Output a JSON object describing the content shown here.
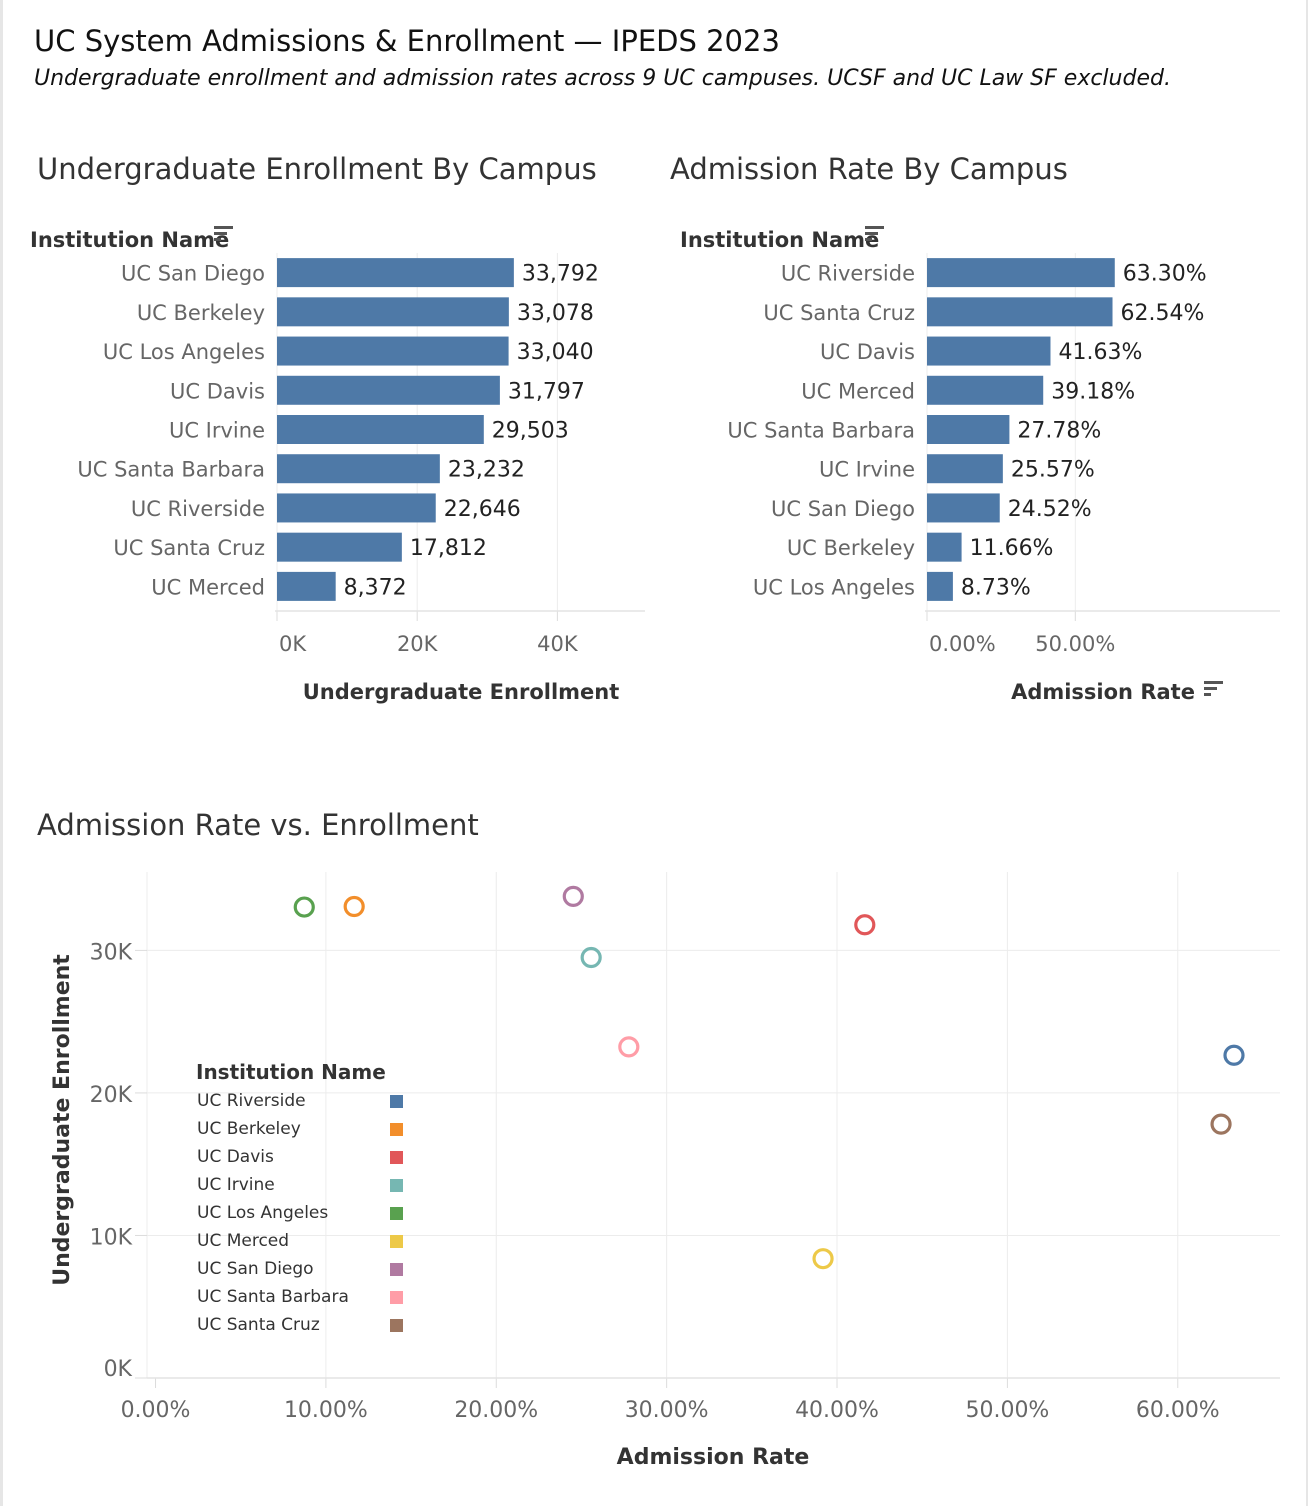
{
  "dashboard": {
    "title": "UC System Admissions & Enrollment — IPEDS 2023",
    "subtitle": "Undergraduate enrollment and admission rates across 9 UC campuses. UCSF and UC Law SF excluded."
  },
  "colors": {
    "bar": "#4e79a7",
    "grid": "#ececec",
    "UC Riverside": "#4e79a7",
    "UC Berkeley": "#f28e2b",
    "UC Davis": "#e15759",
    "UC Irvine": "#76b7b2",
    "UC Los Angeles": "#59a14f",
    "UC Merced": "#edc948",
    "UC San Diego": "#b07aa1",
    "UC Santa Barbara": "#ff9da7",
    "UC Santa Cruz": "#9c755f"
  },
  "chart_data": [
    {
      "type": "bar",
      "orientation": "horizontal",
      "title": "Undergraduate Enrollment By Campus",
      "dimension_label": "Institution Name",
      "xlabel": "Undergraduate Enrollment",
      "xlim": [
        0,
        52500
      ],
      "xticks": [
        0,
        20000,
        40000
      ],
      "xtick_labels": [
        "0K",
        "20K",
        "40K"
      ],
      "categories": [
        "UC San Diego",
        "UC Berkeley",
        "UC Los Angeles",
        "UC Davis",
        "UC Irvine",
        "UC Santa Barbara",
        "UC Riverside",
        "UC Santa Cruz",
        "UC Merced"
      ],
      "values": [
        33792,
        33078,
        33040,
        31797,
        29503,
        23232,
        22646,
        17812,
        8372
      ],
      "labels": [
        "33,792",
        "33,078",
        "33,040",
        "31,797",
        "29,503",
        "23,232",
        "22,646",
        "17,812",
        "8,372"
      ],
      "grid": true
    },
    {
      "type": "bar",
      "orientation": "horizontal",
      "title": "Admission Rate By Campus",
      "dimension_label": "Institution Name",
      "xlabel": "Admission Rate",
      "xlim": [
        0,
        119
      ],
      "xticks": [
        0,
        50
      ],
      "xtick_labels": [
        "0.00%",
        "50.00%"
      ],
      "categories": [
        "UC Riverside",
        "UC Santa Cruz",
        "UC Davis",
        "UC Merced",
        "UC Santa Barbara",
        "UC Irvine",
        "UC San Diego",
        "UC Berkeley",
        "UC Los Angeles"
      ],
      "values": [
        63.3,
        62.54,
        41.63,
        39.18,
        27.78,
        25.57,
        24.52,
        11.66,
        8.73
      ],
      "labels": [
        "63.30%",
        "62.54%",
        "41.63%",
        "39.18%",
        "27.78%",
        "25.57%",
        "24.52%",
        "11.66%",
        "8.73%"
      ],
      "grid": true
    },
    {
      "type": "scatter",
      "title": "Admission Rate vs. Enrollment",
      "xlabel": "Admission Rate",
      "ylabel": "Undergraduate Enrollment",
      "xlim": [
        -0.5,
        66
      ],
      "ylim": [
        0,
        35500
      ],
      "xticks": [
        0,
        10,
        20,
        30,
        40,
        50,
        60
      ],
      "xtick_labels": [
        "0.00%",
        "10.00%",
        "20.00%",
        "30.00%",
        "40.00%",
        "50.00%",
        "60.00%"
      ],
      "yticks": [
        0,
        10000,
        20000,
        30000
      ],
      "ytick_labels": [
        "0K",
        "10K",
        "20K",
        "30K"
      ],
      "legend_title": "Institution Name",
      "legend_position": "left-center",
      "legend_items": [
        "UC Riverside",
        "UC Berkeley",
        "UC Davis",
        "UC Irvine",
        "UC Los Angeles",
        "UC Merced",
        "UC San Diego",
        "UC Santa Barbara",
        "UC Santa Cruz"
      ],
      "points": [
        {
          "name": "UC Riverside",
          "x": 63.3,
          "y": 22646
        },
        {
          "name": "UC Berkeley",
          "x": 11.66,
          "y": 33078
        },
        {
          "name": "UC Davis",
          "x": 41.63,
          "y": 31797
        },
        {
          "name": "UC Irvine",
          "x": 25.57,
          "y": 29503
        },
        {
          "name": "UC Los Angeles",
          "x": 8.73,
          "y": 33040
        },
        {
          "name": "UC Merced",
          "x": 39.18,
          "y": 8372
        },
        {
          "name": "UC San Diego",
          "x": 24.52,
          "y": 33792
        },
        {
          "name": "UC Santa Barbara",
          "x": 27.78,
          "y": 23232
        },
        {
          "name": "UC Santa Cruz",
          "x": 62.54,
          "y": 17812
        }
      ],
      "grid": true
    }
  ]
}
